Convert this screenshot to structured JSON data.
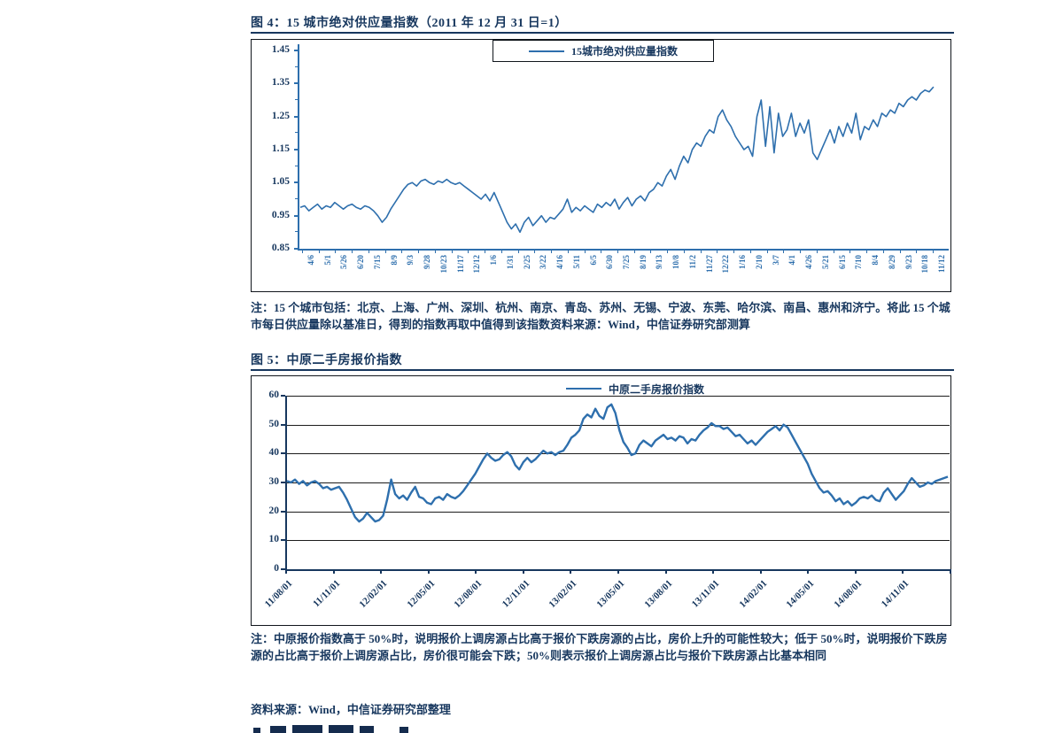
{
  "colors": {
    "accent_text": "#17375e",
    "series_line": "#2e6fad",
    "box_border": "#11161c",
    "gridline": "#1c1c1c"
  },
  "figure4": {
    "title": "图 4：15 城市绝对供应量指数（2011 年 12 月 31 日=1）",
    "note": "注：15 个城市包括：北京、上海、广州、深圳、杭州、南京、青岛、苏州、无锡、宁波、东莞、哈尔滨、南昌、惠州和济宁。将此 15 个城市每日供应量除以基准日，得到的指数再取中值得到该指数资料来源：Wind，中信证券研究部测算"
  },
  "figure5": {
    "title": "图 5：中原二手房报价指数",
    "note": "注：中原报价指数高于 50%时，说明报价上调房源占比高于报价下跌房源的占比，房价上升的可能性较大；低于 50%时，说明报价下跌房源的占比高于报价上调房源占比，房价很可能会下跌；50%则表示报价上调房源占比与报价下跌房源占比基本相同",
    "source": "资料来源：Wind，中信证券研究部整理"
  },
  "chart_data": [
    {
      "type": "line",
      "title": "图 4：15 城市绝对供应量指数（2011 年 12 月 31 日=1）",
      "legend_position": "top-center-inside-boxed",
      "grid": false,
      "ylim": [
        0.85,
        1.45
      ],
      "yticks": [
        0.85,
        0.95,
        1.05,
        1.15,
        1.25,
        1.35,
        1.45
      ],
      "x_tick_labels": [
        "4/6",
        "5/1",
        "5/26",
        "6/20",
        "7/15",
        "8/9",
        "9/3",
        "9/28",
        "10/23",
        "11/17",
        "12/12",
        "1/6",
        "1/31",
        "2/25",
        "3/22",
        "4/16",
        "5/11",
        "6/5",
        "6/30",
        "7/25",
        "8/19",
        "9/13",
        "10/8",
        "11/2",
        "11/27",
        "12/22",
        "1/16",
        "2/10",
        "3/7",
        "4/1",
        "4/26",
        "5/21",
        "6/15",
        "7/10",
        "8/4",
        "8/29",
        "9/23",
        "10/18",
        "11/12"
      ],
      "series": [
        {
          "name": "15城市绝对供应量指数",
          "values": [
            0.975,
            0.98,
            0.965,
            0.975,
            0.985,
            0.97,
            0.98,
            0.975,
            0.99,
            0.98,
            0.97,
            0.98,
            0.985,
            0.975,
            0.97,
            0.98,
            0.975,
            0.965,
            0.95,
            0.93,
            0.945,
            0.97,
            0.99,
            1.01,
            1.03,
            1.045,
            1.05,
            1.04,
            1.055,
            1.06,
            1.05,
            1.045,
            1.055,
            1.05,
            1.06,
            1.05,
            1.045,
            1.05,
            1.04,
            1.03,
            1.02,
            1.01,
            1.0,
            1.015,
            0.995,
            1.02,
            0.99,
            0.96,
            0.93,
            0.91,
            0.925,
            0.9,
            0.93,
            0.945,
            0.92,
            0.935,
            0.95,
            0.93,
            0.945,
            0.94,
            0.955,
            0.97,
            1.0,
            0.96,
            0.975,
            0.965,
            0.98,
            0.97,
            0.96,
            0.985,
            0.975,
            0.99,
            0.98,
            1.0,
            0.97,
            0.99,
            1.005,
            0.98,
            1.0,
            1.01,
            0.995,
            1.02,
            1.03,
            1.05,
            1.04,
            1.07,
            1.09,
            1.06,
            1.1,
            1.13,
            1.11,
            1.15,
            1.17,
            1.16,
            1.19,
            1.21,
            1.2,
            1.25,
            1.27,
            1.24,
            1.22,
            1.19,
            1.17,
            1.15,
            1.16,
            1.13,
            1.25,
            1.3,
            1.16,
            1.28,
            1.14,
            1.26,
            1.19,
            1.21,
            1.26,
            1.19,
            1.23,
            1.2,
            1.24,
            1.14,
            1.12,
            1.15,
            1.18,
            1.21,
            1.17,
            1.22,
            1.19,
            1.23,
            1.2,
            1.26,
            1.18,
            1.22,
            1.21,
            1.24,
            1.22,
            1.26,
            1.25,
            1.27,
            1.26,
            1.29,
            1.28,
            1.3,
            1.31,
            1.3,
            1.32,
            1.33,
            1.325,
            1.34
          ]
        }
      ]
    },
    {
      "type": "line",
      "title": "图 5：中原二手房报价指数",
      "legend_position": "top-center-inside",
      "grid": true,
      "ylim": [
        0,
        60
      ],
      "yticks": [
        0,
        10,
        20,
        30,
        40,
        50,
        60
      ],
      "x_tick_labels": [
        "11/08/01",
        "11/11/01",
        "12/02/01",
        "12/05/01",
        "12/08/01",
        "12/11/01",
        "13/02/01",
        "13/05/01",
        "13/08/01",
        "13/11/01",
        "14/02/01",
        "14/05/01",
        "14/08/01",
        "14/11/01"
      ],
      "series": [
        {
          "name": "中原二手房报价指数",
          "values": [
            30.5,
            30,
            31,
            29.5,
            30.5,
            29,
            30,
            30.5,
            29.5,
            28,
            28.5,
            27.5,
            28,
            28.5,
            26.5,
            24,
            21,
            18,
            16.5,
            17.5,
            19.5,
            18,
            16.5,
            17,
            18.5,
            24,
            31,
            26,
            24.5,
            25.5,
            24,
            26.5,
            28.5,
            25,
            24.5,
            23,
            22.5,
            24.5,
            25,
            24,
            26,
            25,
            24.5,
            25.5,
            27,
            29,
            31,
            33,
            35.5,
            38,
            40,
            38.5,
            37.5,
            38,
            39.5,
            40.5,
            39,
            36,
            34.5,
            37,
            38.5,
            37,
            38,
            39.5,
            41,
            40,
            40.5,
            39.5,
            40.5,
            41,
            43,
            45.5,
            46.5,
            48,
            52,
            53.5,
            52.5,
            55.5,
            53,
            52,
            56,
            57,
            54,
            48,
            44,
            42,
            39.5,
            40,
            43,
            44.5,
            43.5,
            42.5,
            44.5,
            45.5,
            46.5,
            45,
            45.5,
            44.5,
            46,
            45.5,
            43.5,
            45,
            44.5,
            46.5,
            48,
            49,
            50.5,
            49.5,
            49.5,
            48.5,
            49,
            47.5,
            46,
            46.5,
            45,
            43.5,
            44.5,
            43,
            44.5,
            46,
            47.5,
            48.5,
            49.5,
            48,
            50,
            49,
            46.5,
            44,
            41.5,
            39,
            36.5,
            33,
            30.5,
            28,
            26.5,
            27,
            25.5,
            23.5,
            24.5,
            22.5,
            23.5,
            22,
            23,
            24.5,
            25,
            24.5,
            25.5,
            24,
            23.5,
            26.5,
            28,
            26,
            24,
            25.5,
            27,
            29.5,
            31.5,
            30,
            28.5,
            29,
            30,
            29.5,
            30.5,
            31,
            31.5,
            32
          ]
        }
      ]
    }
  ]
}
